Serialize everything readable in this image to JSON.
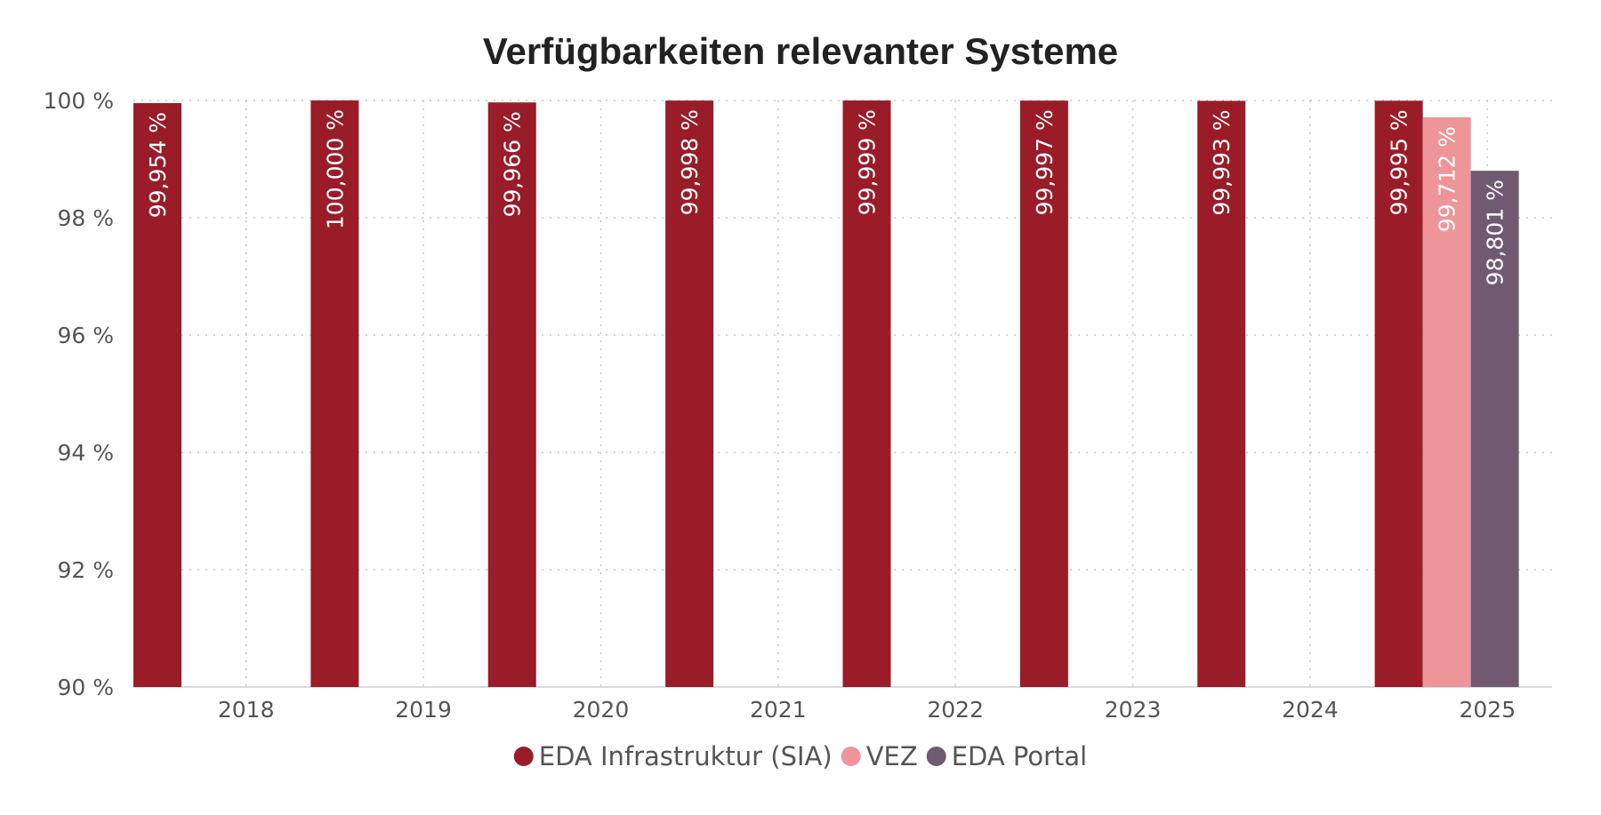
{
  "chart_data": {
    "type": "bar",
    "title": "Verfügbarkeiten relevanter Systeme",
    "xlabel": "",
    "ylabel": "",
    "categories": [
      "2018",
      "2019",
      "2020",
      "2021",
      "2022",
      "2023",
      "2024",
      "2025"
    ],
    "series": [
      {
        "name": "EDA Infrastruktur (SIA)",
        "color": "#9a1c28",
        "values": [
          99.954,
          100.0,
          99.966,
          99.998,
          99.999,
          99.997,
          99.993,
          99.995
        ],
        "labels": [
          "99,954 %",
          "100,000 %",
          "99,966 %",
          "99,998 %",
          "99,999 %",
          "99,997 %",
          "99,993 %",
          "99,995 %"
        ]
      },
      {
        "name": "VEZ",
        "color": "#ee9599",
        "values": [
          null,
          null,
          null,
          null,
          null,
          null,
          null,
          99.712
        ],
        "labels": [
          "",
          "",
          "",
          "",
          "",
          "",
          "",
          "99,712 %"
        ]
      },
      {
        "name": "EDA Portal",
        "color": "#705a72",
        "values": [
          null,
          null,
          null,
          null,
          null,
          null,
          null,
          98.801
        ],
        "labels": [
          "",
          "",
          "",
          "",
          "",
          "",
          "",
          "98,801 %"
        ]
      }
    ],
    "ylim": [
      90,
      100
    ],
    "yticks": [
      90,
      92,
      94,
      96,
      98,
      100
    ],
    "ytick_labels": [
      "90 %",
      "92 %",
      "94 %",
      "96 %",
      "98 %",
      "100 %"
    ],
    "grid": true,
    "legend_position": "bottom-center"
  }
}
